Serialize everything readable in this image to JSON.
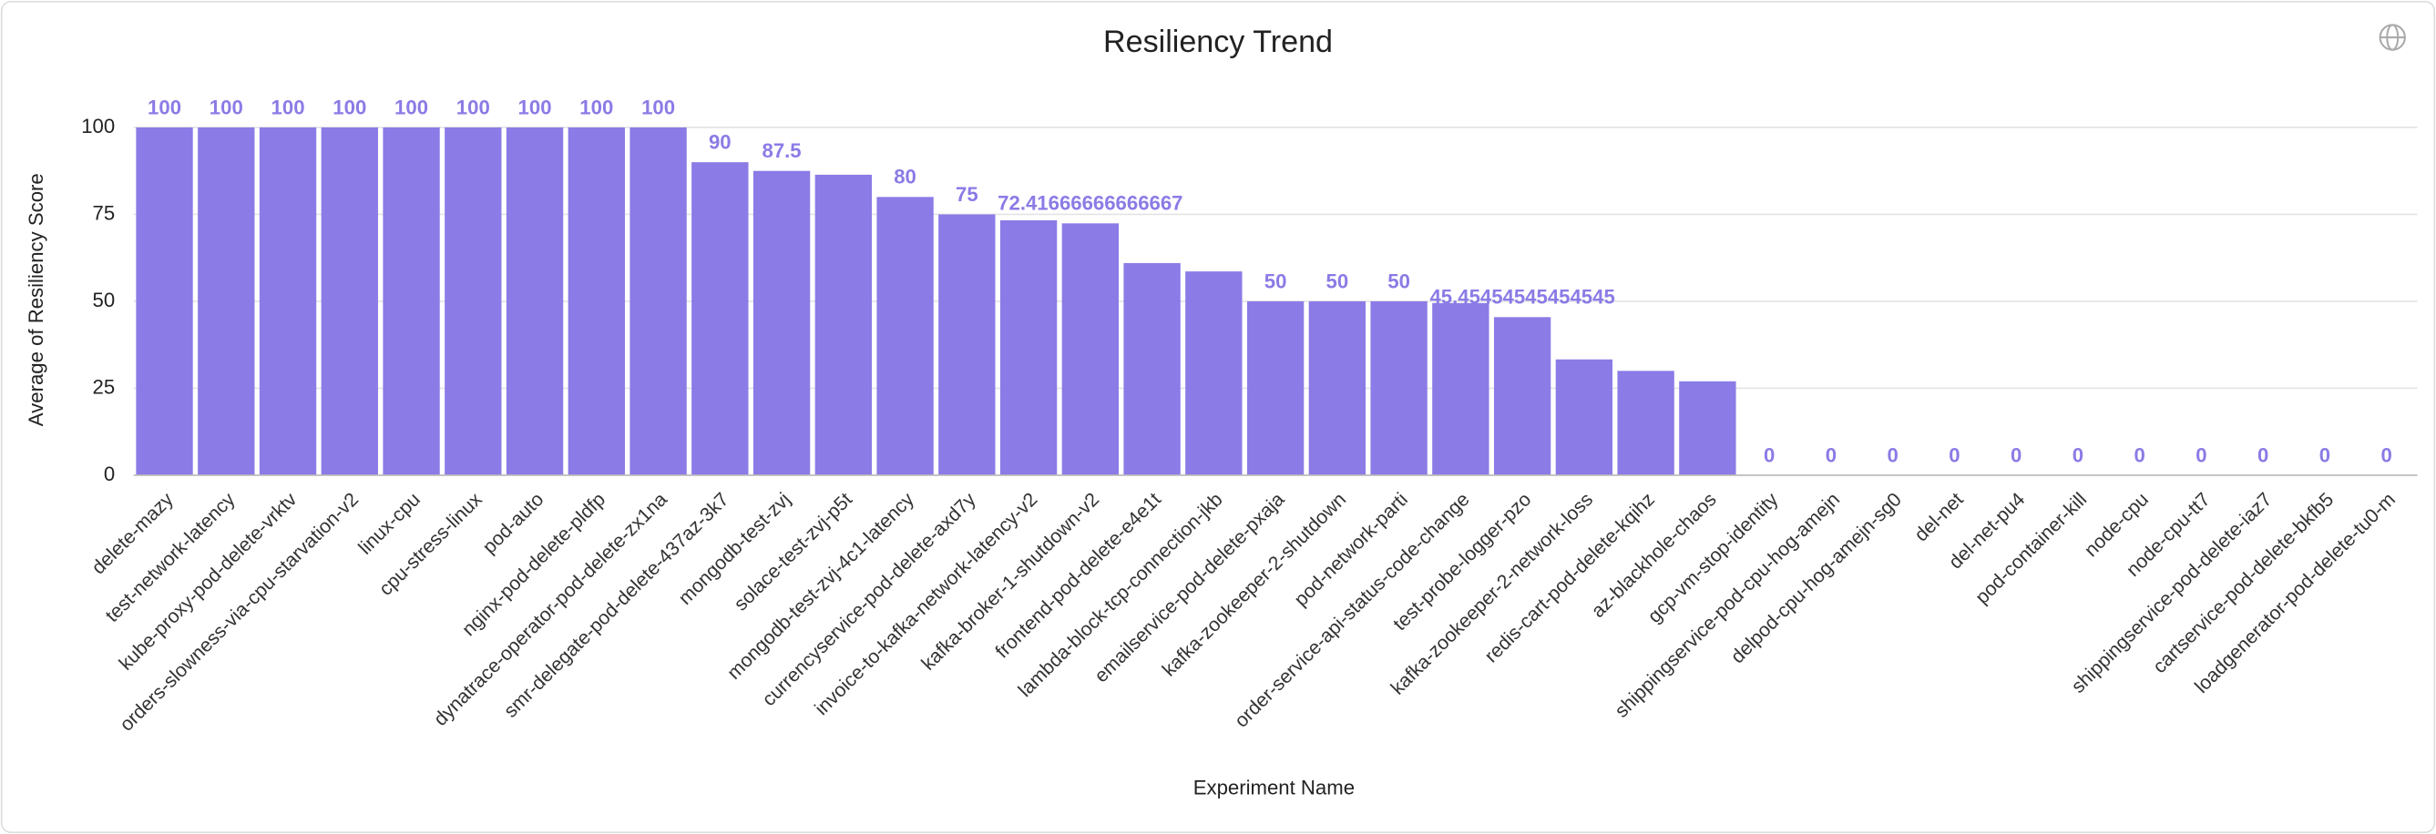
{
  "chart_data": {
    "type": "bar",
    "title": "Resiliency Trend",
    "x_label": "Experiment Name",
    "y_label": "Average of Resiliency Score",
    "categories": [
      "delete-mazy",
      "test-network-latency",
      "kube-proxy-pod-delete-vrktv",
      "orders-slowness-via-cpu-starvation-v2",
      "linux-cpu",
      "cpu-stress-linux",
      "pod-auto",
      "nginx-pod-delete-pldfp",
      "dynatrace-operator-pod-delete-zx1na",
      "smr-delegate-pod-delete-437az-3k7",
      "mongodb-test-zvj",
      "solace-test-zvj-p5t",
      "mongodb-test-zvj-4c1-latency",
      "currencyservice-pod-delete-axd7y",
      "invoice-to-kafka-network-latency-v2",
      "kafka-broker-1-shutdown-v2",
      "frontend-pod-delete-e4e1t",
      "lambda-block-tcp-connection-jkb",
      "emailservice-pod-delete-pxaja",
      "kafka-zookeeper-2-shutdown",
      "pod-network-parti",
      "order-service-api-status-code-change",
      "test-probe-logger-pzo",
      "kafka-zookeeper-2-network-loss",
      "redis-cart-pod-delete-kqihz",
      "az-blackhole-chaos",
      "gcp-vm-stop-identity",
      "shippingservice-pod-cpu-hog-amejn",
      "delpod-cpu-hog-amejn-sg0",
      "del-net",
      "del-net-pu4",
      "pod-container-kill",
      "node-cpu",
      "node-cpu-tt7",
      "shippingservice-pod-delete-iaz7",
      "cartservice-pod-delete-bkfb5",
      "loadgenerator-pod-delete-tu0-m"
    ],
    "values": [
      100,
      100,
      100,
      100,
      100,
      100,
      100,
      100,
      100,
      90,
      87.5,
      86.4,
      80,
      75,
      73.3,
      72.41666666666667,
      61,
      58.6,
      50,
      50,
      50,
      49.5,
      45.45454545454545,
      33.3,
      30,
      27,
      0,
      0,
      0,
      0,
      0,
      0,
      0,
      0,
      0,
      0,
      0
    ],
    "value_labels": [
      "100",
      "100",
      "100",
      "100",
      "100",
      "100",
      "100",
      "100",
      "100",
      "90",
      "87.5",
      null,
      "80",
      "75",
      null,
      "72.41666666666667",
      null,
      null,
      "50",
      "50",
      "50",
      null,
      "45.45454545454545",
      null,
      null,
      null,
      "0",
      "0",
      "0",
      "0",
      "0",
      "0",
      "0",
      "0",
      "0",
      "0",
      "0"
    ],
    "color": "#8a7be6",
    "ylim": [
      0,
      105
    ],
    "yticks": [
      0,
      25,
      50,
      75,
      100
    ],
    "grid": true
  }
}
